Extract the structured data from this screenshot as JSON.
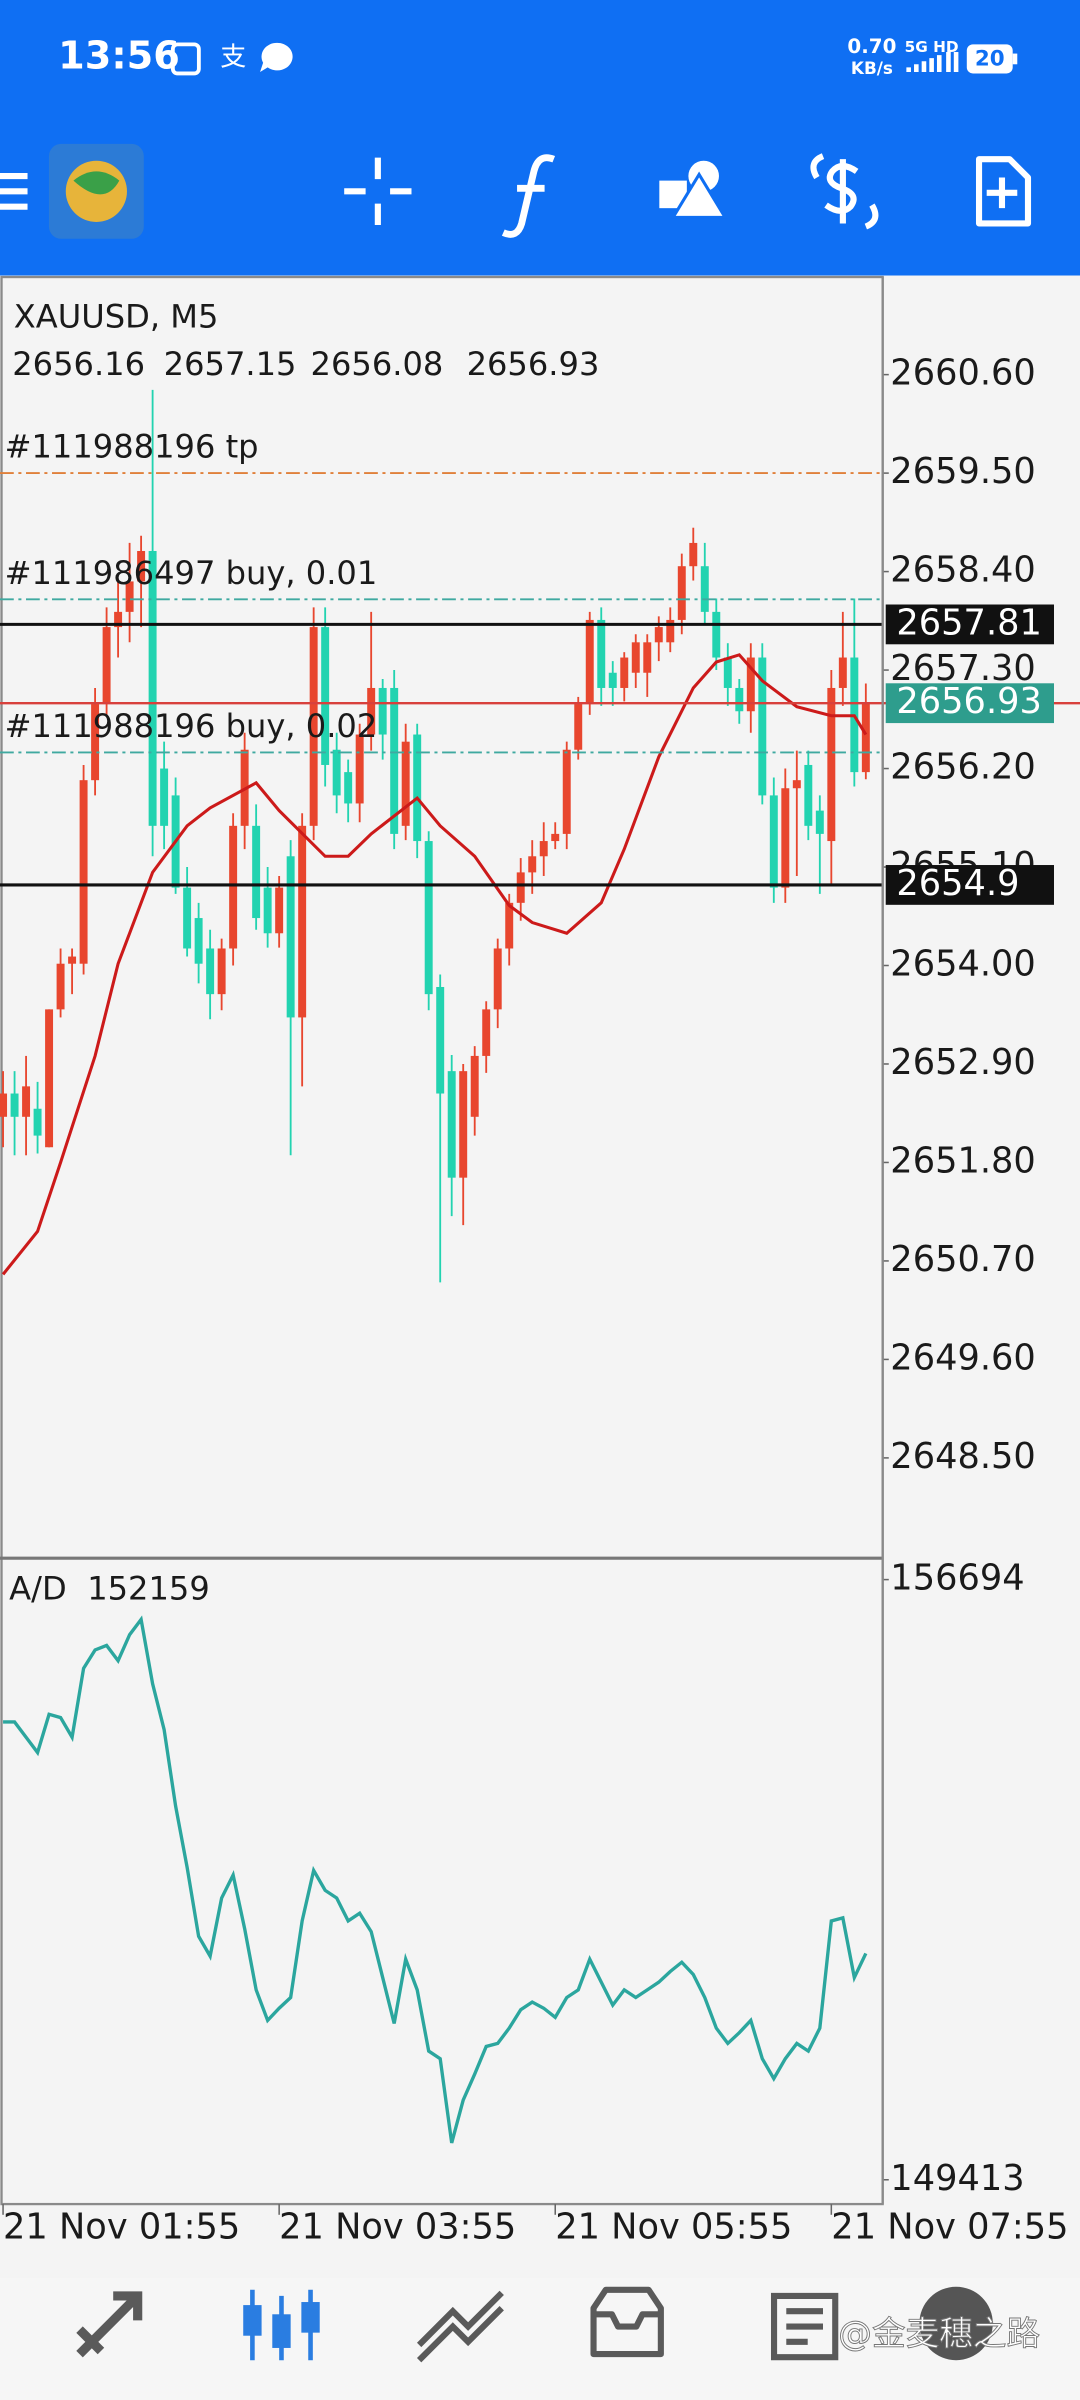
{
  "status_bar": {
    "time": "13:56",
    "app_badge": "支",
    "net_speed": "0.70",
    "net_unit": "KB/s",
    "signal": "5G HD",
    "battery": "20"
  },
  "chart_data": [
    {
      "type": "candlestick",
      "title": "XAUUSD, M5",
      "open": [
        2652.31,
        2652.57,
        2652.31,
        2652.4,
        2651.97,
        2653.51,
        2654.02,
        2654.02,
        2656.07,
        2656.92,
        2657.78,
        2657.95,
        2658.29,
        2658.63,
        2656.2,
        2655.9,
        2654.87,
        2654.53,
        2654.19,
        2653.68,
        2654.19,
        2655.56,
        2655.56,
        2654.87,
        2654.36,
        2655.22,
        2653.42,
        2655.56,
        2657.78,
        2656.41,
        2656.16,
        2655.81,
        2656.58,
        2657.1,
        2657.1,
        2655.56,
        2656.58,
        2655.39,
        2653.76,
        2652.82,
        2651.63,
        2652.31,
        2652.99,
        2653.51,
        2654.19,
        2654.7,
        2655.04,
        2655.22,
        2655.39,
        2655.47,
        2656.41,
        2656.92,
        2657.86,
        2657.27,
        2657.1,
        2657.27,
        2657.27,
        2657.61,
        2657.61,
        2657.86,
        2658.46,
        2658.46,
        2657.95,
        2657.44,
        2657.1,
        2656.84,
        2657.44,
        2655.9,
        2654.87,
        2655.98,
        2656.24,
        2655.73,
        2655.39,
        2657.1,
        2657.44,
        2656.16
      ],
      "high": [
        2652.82,
        2652.82,
        2652.99,
        2652.7,
        2653.51,
        2654.19,
        2654.19,
        2656.24,
        2657.1,
        2658.0,
        2658.29,
        2658.72,
        2658.8,
        2660.43,
        2656.5,
        2656.1,
        2655.1,
        2654.7,
        2654.4,
        2654.3,
        2655.7,
        2656.6,
        2655.8,
        2655.1,
        2655.0,
        2655.4,
        2655.7,
        2658.0,
        2658.0,
        2656.6,
        2656.3,
        2656.7,
        2657.95,
        2657.2,
        2657.3,
        2656.7,
        2656.7,
        2655.5,
        2653.9,
        2653.0,
        2652.9,
        2653.1,
        2653.6,
        2654.3,
        2654.8,
        2655.2,
        2655.4,
        2655.6,
        2655.6,
        2656.5,
        2657.0,
        2657.95,
        2658.0,
        2657.4,
        2657.5,
        2657.7,
        2657.7,
        2657.9,
        2658.0,
        2658.6,
        2658.89,
        2658.72,
        2658.1,
        2657.6,
        2657.2,
        2657.6,
        2657.6,
        2656.1,
        2656.2,
        2656.4,
        2656.4,
        2655.9,
        2657.3,
        2657.95,
        2658.1,
        2657.15
      ],
      "low": [
        2651.97,
        2651.88,
        2651.88,
        2651.9,
        2651.97,
        2653.42,
        2653.68,
        2653.9,
        2655.9,
        2656.8,
        2657.44,
        2657.61,
        2657.78,
        2655.22,
        2655.3,
        2654.8,
        2654.1,
        2653.8,
        2653.4,
        2653.5,
        2654.0,
        2655.3,
        2654.4,
        2654.2,
        2654.2,
        2651.88,
        2652.65,
        2655.4,
        2656.0,
        2655.7,
        2655.6,
        2655.6,
        2656.4,
        2656.3,
        2655.3,
        2655.4,
        2655.2,
        2653.5,
        2650.46,
        2651.2,
        2651.1,
        2652.1,
        2652.8,
        2653.3,
        2654.0,
        2654.5,
        2654.8,
        2655.0,
        2655.3,
        2655.3,
        2656.3,
        2656.8,
        2656.9,
        2656.9,
        2656.95,
        2657.1,
        2657.0,
        2657.4,
        2657.5,
        2657.7,
        2658.3,
        2657.8,
        2657.3,
        2656.9,
        2656.7,
        2656.6,
        2655.8,
        2654.7,
        2654.7,
        2655.0,
        2655.4,
        2654.8,
        2654.9,
        2656.9,
        2656.0,
        2656.08
      ],
      "close": [
        2652.57,
        2652.31,
        2652.65,
        2652.1,
        2653.51,
        2654.02,
        2654.1,
        2656.07,
        2656.92,
        2657.78,
        2657.95,
        2658.29,
        2658.63,
        2655.56,
        2655.56,
        2654.87,
        2654.19,
        2654.02,
        2653.68,
        2654.19,
        2655.56,
        2656.41,
        2654.53,
        2654.36,
        2654.87,
        2653.42,
        2655.56,
        2657.78,
        2656.24,
        2655.9,
        2655.81,
        2656.58,
        2657.1,
        2656.58,
        2655.47,
        2656.5,
        2655.39,
        2653.68,
        2652.57,
        2651.63,
        2652.82,
        2652.99,
        2653.51,
        2654.19,
        2654.7,
        2655.04,
        2655.22,
        2655.39,
        2655.47,
        2656.41,
        2656.92,
        2657.86,
        2657.1,
        2657.1,
        2657.44,
        2657.61,
        2657.61,
        2657.78,
        2657.86,
        2658.46,
        2658.72,
        2657.95,
        2657.44,
        2657.1,
        2656.84,
        2657.44,
        2655.9,
        2654.87,
        2655.98,
        2656.07,
        2655.56,
        2655.47,
        2657.1,
        2657.44,
        2656.16,
        2656.93
      ],
      "up_color": "#e8462e",
      "down_color": "#22d3b0",
      "ma": {
        "color": "#cc1a1a",
        "x": [
          0,
          3,
          5,
          8,
          10,
          13,
          16,
          18,
          22,
          24,
          28,
          30,
          32,
          36,
          38,
          41,
          44,
          46,
          49,
          52,
          54,
          57,
          60,
          62,
          64,
          66,
          69,
          72,
          74,
          75
        ],
        "values": [
          2650.55,
          2651.03,
          2651.8,
          2652.99,
          2654.02,
          2655.04,
          2655.56,
          2655.76,
          2656.04,
          2655.73,
          2655.22,
          2655.22,
          2655.47,
          2655.87,
          2655.56,
          2655.22,
          2654.67,
          2654.48,
          2654.36,
          2654.7,
          2655.3,
          2656.33,
          2657.1,
          2657.39,
          2657.47,
          2657.18,
          2656.89,
          2656.79,
          2656.79,
          2656.58
        ]
      },
      "levels": [
        {
          "name": "#111988196 tp",
          "value": 2659.5,
          "color": "#e0803a",
          "dash": "dashdot"
        },
        {
          "name": "#111986497 buy, 0.01",
          "value": 2658.09,
          "color": "#3fa9a0",
          "dash": "dashdot"
        },
        {
          "value": 2657.81,
          "color": "#111111",
          "dash": "solid",
          "price_box": true
        },
        {
          "name": "#111988196 buy, 0.02",
          "value": 2656.38,
          "color": "#3fa9a0",
          "dash": "dashdot"
        },
        {
          "value": 2654.9,
          "color": "#111111",
          "dash": "solid",
          "price_box": true
        }
      ],
      "bid_color": "#d8403c",
      "bid_box_color": "#2e9d8d",
      "ylim": [
        2647.38,
        2661.69
      ],
      "yticks": [
        {
          "value": 2660.6,
          "label": "2660.60"
        },
        {
          "value": 2659.5,
          "label": "2659.50"
        },
        {
          "value": 2658.4,
          "label": "2658.40"
        },
        {
          "value": 2657.3,
          "label": "2657.30"
        },
        {
          "value": 2656.2,
          "label": "2656.20"
        },
        {
          "value": 2655.1,
          "label": "2655.10"
        },
        {
          "value": 2654.0,
          "label": "2654.00"
        },
        {
          "value": 2652.9,
          "label": "2652.90"
        },
        {
          "value": 2651.8,
          "label": "2651.80"
        },
        {
          "value": 2650.7,
          "label": "2650.70"
        },
        {
          "value": 2649.6,
          "label": "2649.60"
        },
        {
          "value": 2648.5,
          "label": "2648.50"
        }
      ]
    },
    {
      "type": "line",
      "title": "A/D",
      "color": "#2ba69e",
      "values": [
        154967,
        154967,
        154781,
        154596,
        155060,
        155020,
        154781,
        155617,
        155840,
        155895,
        155710,
        156025,
        156210,
        155430,
        154875,
        153946,
        153203,
        152367,
        152126,
        152831,
        153110,
        152460,
        151717,
        151346,
        151494,
        151624,
        152553,
        153166,
        152924,
        152831,
        152553,
        152646,
        152423,
        151866,
        151309,
        152089,
        151717,
        150974,
        150882,
        149860,
        150380,
        150696,
        151030,
        151067,
        151253,
        151476,
        151569,
        151494,
        151383,
        151624,
        151717,
        152089,
        151810,
        151532,
        151717,
        151624,
        151717,
        151810,
        151940,
        152052,
        151903,
        151624,
        151253,
        151067,
        151197,
        151346,
        150882,
        150640,
        150882,
        151067,
        150974,
        151253,
        152553,
        152590,
        151866,
        152159
      ],
      "ylim": [
        149118,
        156954
      ],
      "yticks": [
        156694,
        149413
      ],
      "xticks": [
        {
          "value": 0,
          "label": "21 Nov 01:55"
        },
        {
          "value": 24,
          "label": "21 Nov 03:55"
        },
        {
          "value": 48,
          "label": "21 Nov 05:55"
        },
        {
          "value": 72,
          "label": "21 Nov 07:55"
        }
      ]
    }
  ],
  "watermark": "@金麦穗之路"
}
